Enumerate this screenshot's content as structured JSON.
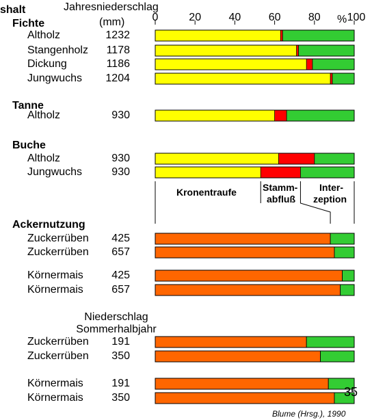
{
  "header": {
    "title_fragment": "shalt",
    "col_header_1": "Jahresniederschlag",
    "col_header_unit": "(mm)",
    "pct_label": "%"
  },
  "groups": {
    "fichte": "Fichte",
    "tanne": "Tanne",
    "buche": "Buche",
    "ackernutzung": "Ackernutzung"
  },
  "niederschlag_header": {
    "line1": "Niederschlag",
    "line2": "Sommerhalbjahr"
  },
  "legend": {
    "kronentraufe": "Kronentraufe",
    "stamm_line1": "Stamm-",
    "stamm_line2": "abfluß",
    "inter_line1": "Inter-",
    "inter_line2": "zeption"
  },
  "page_number": "35",
  "source": "Blume (Hrsg.), 1990",
  "colors": {
    "kronentraufe_forest": "#ffff00",
    "kronentraufe_field": "#ff6600",
    "stammabfluss": "#ff0000",
    "interzeption": "#33cc33",
    "border": "#000000"
  },
  "chart_data": {
    "type": "bar",
    "orientation": "horizontal",
    "stacked": true,
    "xlim": [
      0,
      100
    ],
    "xticks": [
      "0",
      "20",
      "40",
      "60",
      "80",
      "100"
    ],
    "series_names": [
      "Kronentraufe",
      "Stammabfluß",
      "Interzeption"
    ],
    "rows": [
      {
        "label": "Altholz",
        "precip": "1232",
        "values": [
          63,
          1,
          36
        ],
        "fill": "forest"
      },
      {
        "label": "Stangenholz",
        "precip": "1178",
        "values": [
          71,
          1,
          28
        ],
        "fill": "forest"
      },
      {
        "label": "Dickung",
        "precip": "1186",
        "values": [
          76,
          3,
          21
        ],
        "fill": "forest"
      },
      {
        "label": "Jungwuchs",
        "precip": "1204",
        "values": [
          88,
          1,
          11
        ],
        "fill": "forest"
      },
      {
        "label": "Altholz",
        "precip": "930",
        "values": [
          60,
          6,
          34
        ],
        "fill": "forest"
      },
      {
        "label": "Altholz",
        "precip": "930",
        "values": [
          62,
          18,
          20
        ],
        "fill": "forest"
      },
      {
        "label": "Jungwuchs",
        "precip": "930",
        "values": [
          53,
          20,
          27
        ],
        "fill": "forest"
      },
      {
        "label": "Zuckerrüben",
        "precip": "425",
        "values": [
          88,
          0,
          12
        ],
        "fill": "field"
      },
      {
        "label": "Zuckerrüben",
        "precip": "657",
        "values": [
          90,
          0,
          10
        ],
        "fill": "field"
      },
      {
        "label": "Körnermais",
        "precip": "425",
        "values": [
          94,
          0,
          6
        ],
        "fill": "field"
      },
      {
        "label": "Körnermais",
        "precip": "657",
        "values": [
          93,
          0,
          7
        ],
        "fill": "field"
      },
      {
        "label": "Zuckerrüben",
        "precip": "191",
        "values": [
          76,
          0,
          24
        ],
        "fill": "field"
      },
      {
        "label": "Zuckerrüben",
        "precip": "350",
        "values": [
          83,
          0,
          17
        ],
        "fill": "field"
      },
      {
        "label": "Körnermais",
        "precip": "191",
        "values": [
          87,
          0,
          13
        ],
        "fill": "field"
      },
      {
        "label": "Körnermais",
        "precip": "350",
        "values": [
          90,
          0,
          10
        ],
        "fill": "field"
      }
    ]
  }
}
